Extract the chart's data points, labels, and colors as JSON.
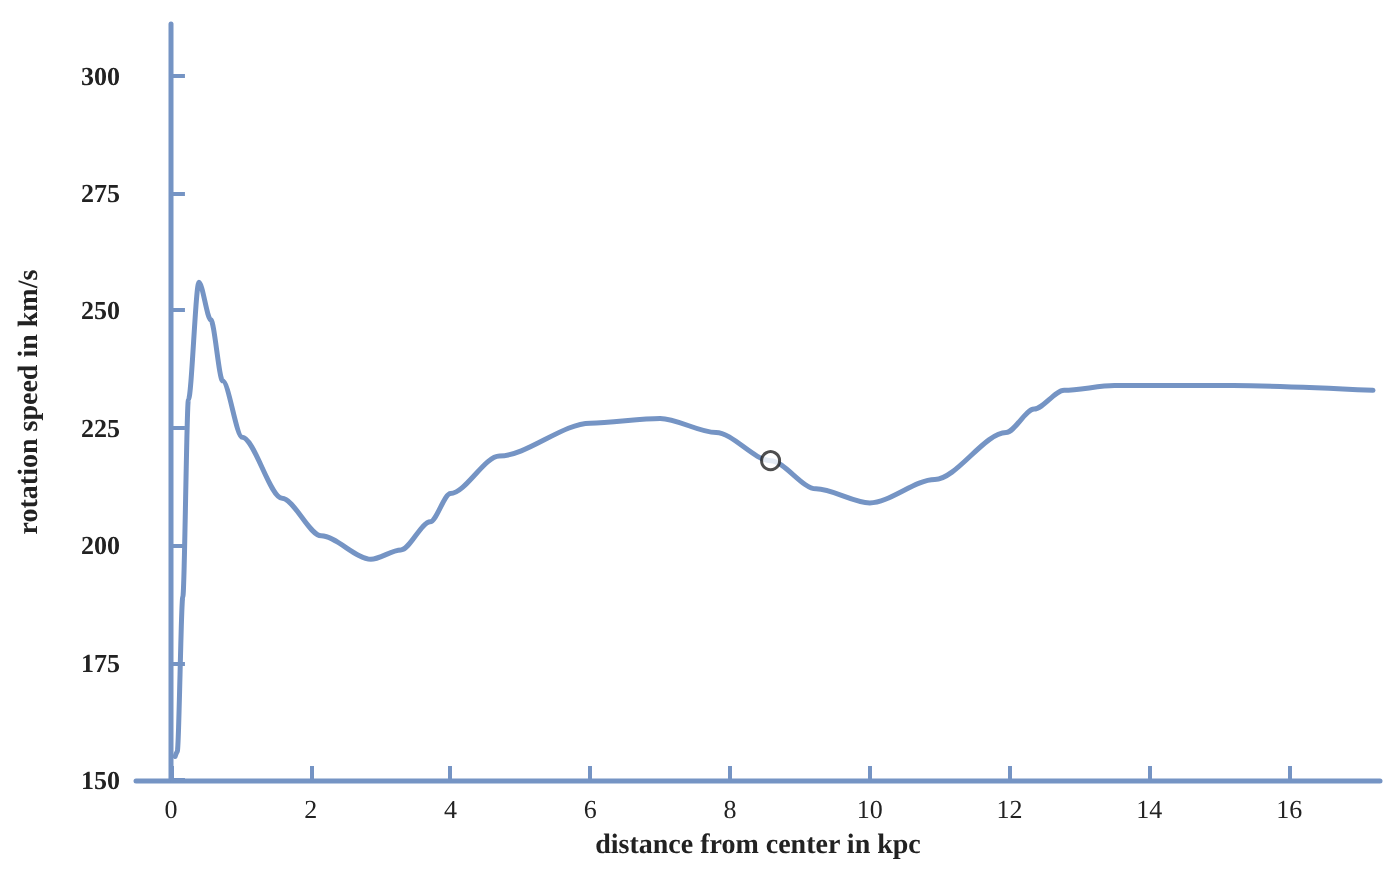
{
  "chart_data": {
    "type": "line",
    "xlabel": "distance from center in kpc",
    "ylabel": "rotation speed in km/s",
    "xlim": [
      -0.5,
      17.3
    ],
    "xticks": [
      0,
      2,
      4,
      6,
      8,
      10,
      12,
      14,
      16
    ],
    "ylim": [
      150,
      311
    ],
    "yticks": [
      150,
      175,
      200,
      225,
      250,
      275,
      300
    ],
    "grid": false,
    "series": [
      {
        "color": "#7594c4",
        "marker": "none",
        "line_style": "solid",
        "x": [
          0.06,
          0.09,
          0.17,
          0.25,
          0.4,
          0.57,
          0.74,
          1.02,
          1.59,
          2.15,
          2.86,
          3.29,
          3.71,
          4.0,
          4.7,
          6.0,
          7.0,
          7.8,
          8.58,
          9.23,
          10.0,
          10.93,
          11.95,
          12.35,
          12.78,
          13.5,
          15.2,
          17.2
        ],
        "values": [
          155,
          156,
          189,
          231,
          256,
          248,
          235,
          223,
          210,
          202,
          197,
          199,
          205,
          211,
          219,
          226,
          227,
          224,
          218,
          212,
          209,
          214,
          224,
          229,
          233,
          234,
          234,
          233
        ]
      },
      {
        "type": "scatter",
        "color": "#222222",
        "marker": "circle",
        "x": [
          8.58
        ],
        "values": [
          218
        ]
      }
    ]
  }
}
